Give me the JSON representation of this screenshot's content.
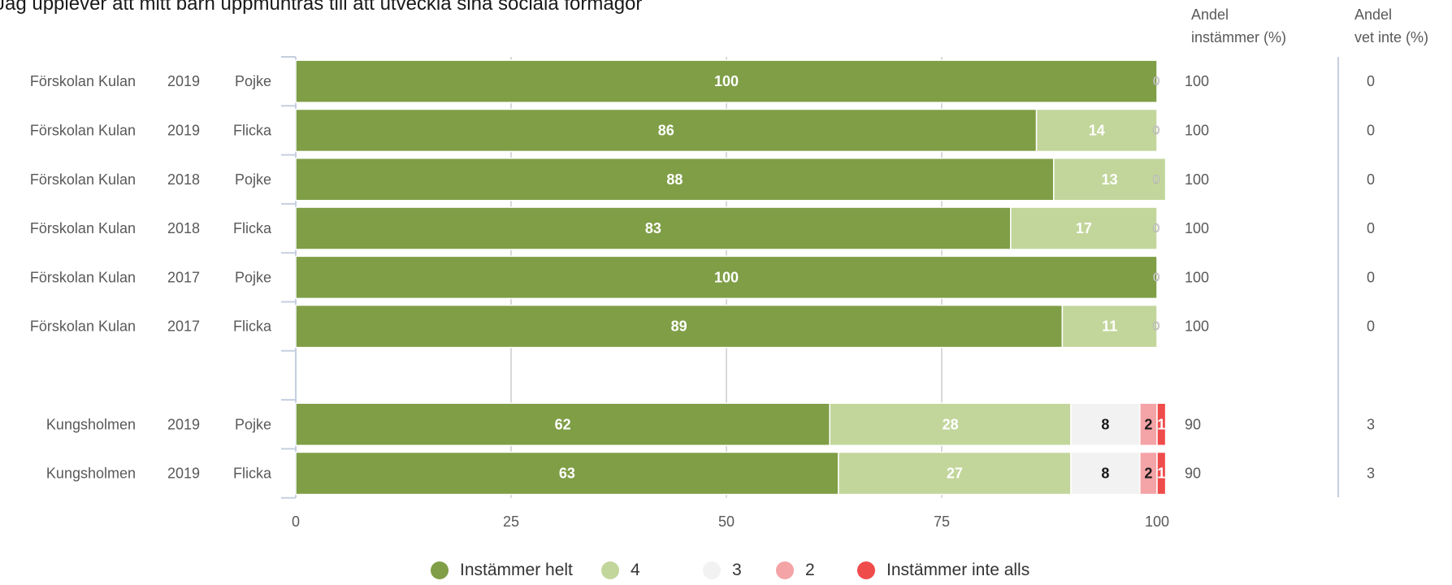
{
  "title": "Jag upplever att mitt barn uppmuntras till att utveckla sina sociala förmågor",
  "columns": {
    "agree": [
      "Andel",
      "instämmer (%)"
    ],
    "dontknow": [
      "Andel",
      "vet inte (%)"
    ]
  },
  "colors": {
    "instammer_helt": "#7f9e46",
    "c4": "#c2d69b",
    "c3": "#f2f2f2",
    "c2": "#f4a3a6",
    "instammer_inte_alls": "#f04b4b",
    "grid": "#d9d9d9",
    "axis": "#c5cfe0"
  },
  "chart_data": {
    "type": "bar",
    "orientation": "horizontal",
    "stacked": true,
    "xlim": [
      0,
      100
    ],
    "xticks": [
      "0",
      "25",
      "50",
      "75",
      "100"
    ],
    "series": [
      {
        "name": "Instämmer helt",
        "values": [
          100,
          86,
          88,
          83,
          100,
          89,
          null,
          62,
          63
        ]
      },
      {
        "name": "4",
        "values": [
          0,
          14,
          13,
          17,
          0,
          11,
          null,
          28,
          27
        ]
      },
      {
        "name": "3",
        "values": [
          0,
          0,
          0,
          0,
          0,
          0,
          null,
          8,
          8
        ]
      },
      {
        "name": "2",
        "values": [
          0,
          0,
          0,
          0,
          0,
          0,
          null,
          2,
          2
        ]
      },
      {
        "name": "Instämmer inte alls",
        "values": [
          0,
          0,
          0,
          0,
          0,
          0,
          null,
          1,
          1
        ]
      }
    ],
    "rows": [
      {
        "unit": "Förskolan Kulan",
        "year": "2019",
        "gender": "Pojke",
        "agree": "100",
        "dontknow": "0"
      },
      {
        "unit": "Förskolan Kulan",
        "year": "2019",
        "gender": "Flicka",
        "agree": "100",
        "dontknow": "0"
      },
      {
        "unit": "Förskolan Kulan",
        "year": "2018",
        "gender": "Pojke",
        "agree": "100",
        "dontknow": "0"
      },
      {
        "unit": "Förskolan Kulan",
        "year": "2018",
        "gender": "Flicka",
        "agree": "100",
        "dontknow": "0"
      },
      {
        "unit": "Förskolan Kulan",
        "year": "2017",
        "gender": "Pojke",
        "agree": "100",
        "dontknow": "0"
      },
      {
        "unit": "Förskolan Kulan",
        "year": "2017",
        "gender": "Flicka",
        "agree": "100",
        "dontknow": "0"
      },
      {
        "unit": "",
        "year": "",
        "gender": "",
        "agree": "",
        "dontknow": ""
      },
      {
        "unit": "Kungsholmen",
        "year": "2019",
        "gender": "Pojke",
        "agree": "90",
        "dontknow": "3"
      },
      {
        "unit": "Kungsholmen",
        "year": "2019",
        "gender": "Flicka",
        "agree": "90",
        "dontknow": "3"
      }
    ],
    "legend": [
      "Instämmer helt",
      "4",
      "3",
      "2",
      "Instämmer inte alls"
    ]
  }
}
